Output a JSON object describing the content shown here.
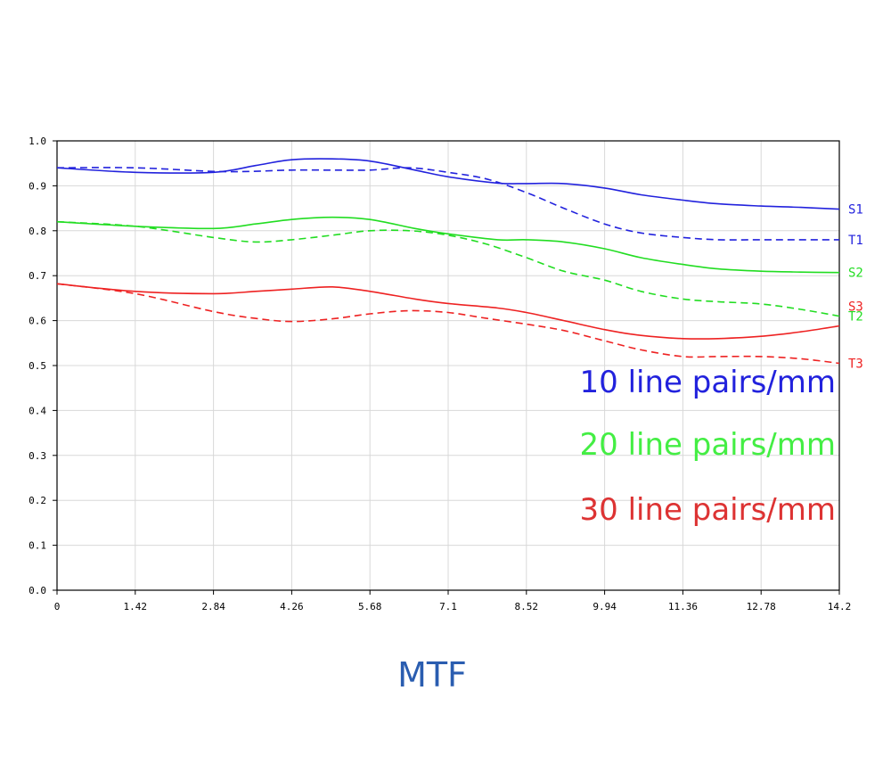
{
  "chart_data": {
    "type": "line",
    "title": "MTF",
    "xlabel": "",
    "ylabel": "",
    "xlim": [
      0,
      14.2
    ],
    "ylim": [
      0,
      1.0
    ],
    "x_ticks": [
      "0",
      "1.42",
      "2.84",
      "4.26",
      "5.68",
      "7.1",
      "8.52",
      "9.94",
      "11.36",
      "12.78",
      "14.2"
    ],
    "y_ticks": [
      "0.0",
      "0.1",
      "0.2",
      "0.3",
      "0.4",
      "0.5",
      "0.6",
      "0.7",
      "0.8",
      "0.9",
      "1.0"
    ],
    "grid": true,
    "colors": {
      "s10": "#2222dd",
      "s20": "#22dd22",
      "s30": "#ee2222",
      "title": "#2a5db0"
    },
    "legend": [
      {
        "text": "10 line pairs/mm",
        "color": "#2222dd"
      },
      {
        "text": "20 line pairs/mm",
        "color": "#44ee44"
      },
      {
        "text": "30 line pairs/mm",
        "color": "#dd3333"
      }
    ],
    "series": [
      {
        "name": "S1",
        "color": "#2222dd",
        "dashed": false,
        "x": [
          0,
          1.42,
          2.84,
          3.6,
          4.26,
          5.0,
          5.68,
          6.5,
          7.1,
          8.0,
          8.52,
          9.2,
          9.94,
          10.6,
          11.36,
          12.0,
          12.78,
          13.5,
          14.2
        ],
        "y": [
          0.94,
          0.93,
          0.93,
          0.945,
          0.958,
          0.96,
          0.955,
          0.935,
          0.92,
          0.906,
          0.905,
          0.905,
          0.895,
          0.88,
          0.868,
          0.86,
          0.855,
          0.852,
          0.848
        ]
      },
      {
        "name": "T1",
        "color": "#2222dd",
        "dashed": true,
        "x": [
          0,
          1.42,
          2.84,
          3.5,
          4.26,
          5.0,
          5.68,
          6.4,
          7.1,
          7.8,
          8.52,
          9.2,
          9.94,
          10.6,
          11.36,
          12.0,
          12.78,
          13.5,
          14.2
        ],
        "y": [
          0.94,
          0.94,
          0.932,
          0.932,
          0.935,
          0.935,
          0.935,
          0.94,
          0.93,
          0.915,
          0.885,
          0.85,
          0.815,
          0.795,
          0.785,
          0.78,
          0.78,
          0.78,
          0.78
        ]
      },
      {
        "name": "S2",
        "color": "#22dd22",
        "dashed": false,
        "x": [
          0,
          1.42,
          2.84,
          3.6,
          4.26,
          5.0,
          5.68,
          6.5,
          7.1,
          8.0,
          8.52,
          9.2,
          9.94,
          10.6,
          11.36,
          12.0,
          12.78,
          13.5,
          14.2
        ],
        "y": [
          0.82,
          0.81,
          0.805,
          0.815,
          0.825,
          0.83,
          0.825,
          0.805,
          0.793,
          0.78,
          0.78,
          0.775,
          0.76,
          0.74,
          0.725,
          0.715,
          0.71,
          0.708,
          0.707
        ]
      },
      {
        "name": "T2",
        "color": "#22dd22",
        "dashed": true,
        "x": [
          0,
          1.42,
          2.84,
          3.6,
          4.26,
          5.0,
          5.68,
          6.4,
          7.1,
          7.8,
          8.52,
          9.2,
          9.94,
          10.6,
          11.36,
          12.0,
          12.78,
          13.5,
          14.2
        ],
        "y": [
          0.82,
          0.81,
          0.785,
          0.775,
          0.78,
          0.79,
          0.8,
          0.8,
          0.79,
          0.77,
          0.74,
          0.71,
          0.69,
          0.665,
          0.648,
          0.642,
          0.637,
          0.625,
          0.61
        ]
      },
      {
        "name": "S3",
        "color": "#ee2222",
        "dashed": false,
        "x": [
          0,
          1.42,
          2.84,
          3.6,
          4.26,
          5.0,
          5.68,
          6.5,
          7.1,
          8.0,
          8.52,
          9.2,
          9.94,
          10.6,
          11.36,
          12.0,
          12.78,
          13.5,
          14.2
        ],
        "y": [
          0.682,
          0.665,
          0.66,
          0.665,
          0.67,
          0.675,
          0.665,
          0.648,
          0.638,
          0.628,
          0.618,
          0.6,
          0.58,
          0.567,
          0.56,
          0.56,
          0.565,
          0.575,
          0.588
        ]
      },
      {
        "name": "T3",
        "color": "#ee2222",
        "dashed": true,
        "x": [
          0,
          1.42,
          2.84,
          3.6,
          4.26,
          5.0,
          5.68,
          6.4,
          7.1,
          7.8,
          8.52,
          9.2,
          9.94,
          10.6,
          11.36,
          12.0,
          12.78,
          13.5,
          14.2
        ],
        "y": [
          0.682,
          0.66,
          0.62,
          0.605,
          0.598,
          0.604,
          0.615,
          0.622,
          0.618,
          0.605,
          0.592,
          0.578,
          0.555,
          0.535,
          0.52,
          0.52,
          0.52,
          0.515,
          0.505
        ]
      }
    ]
  }
}
